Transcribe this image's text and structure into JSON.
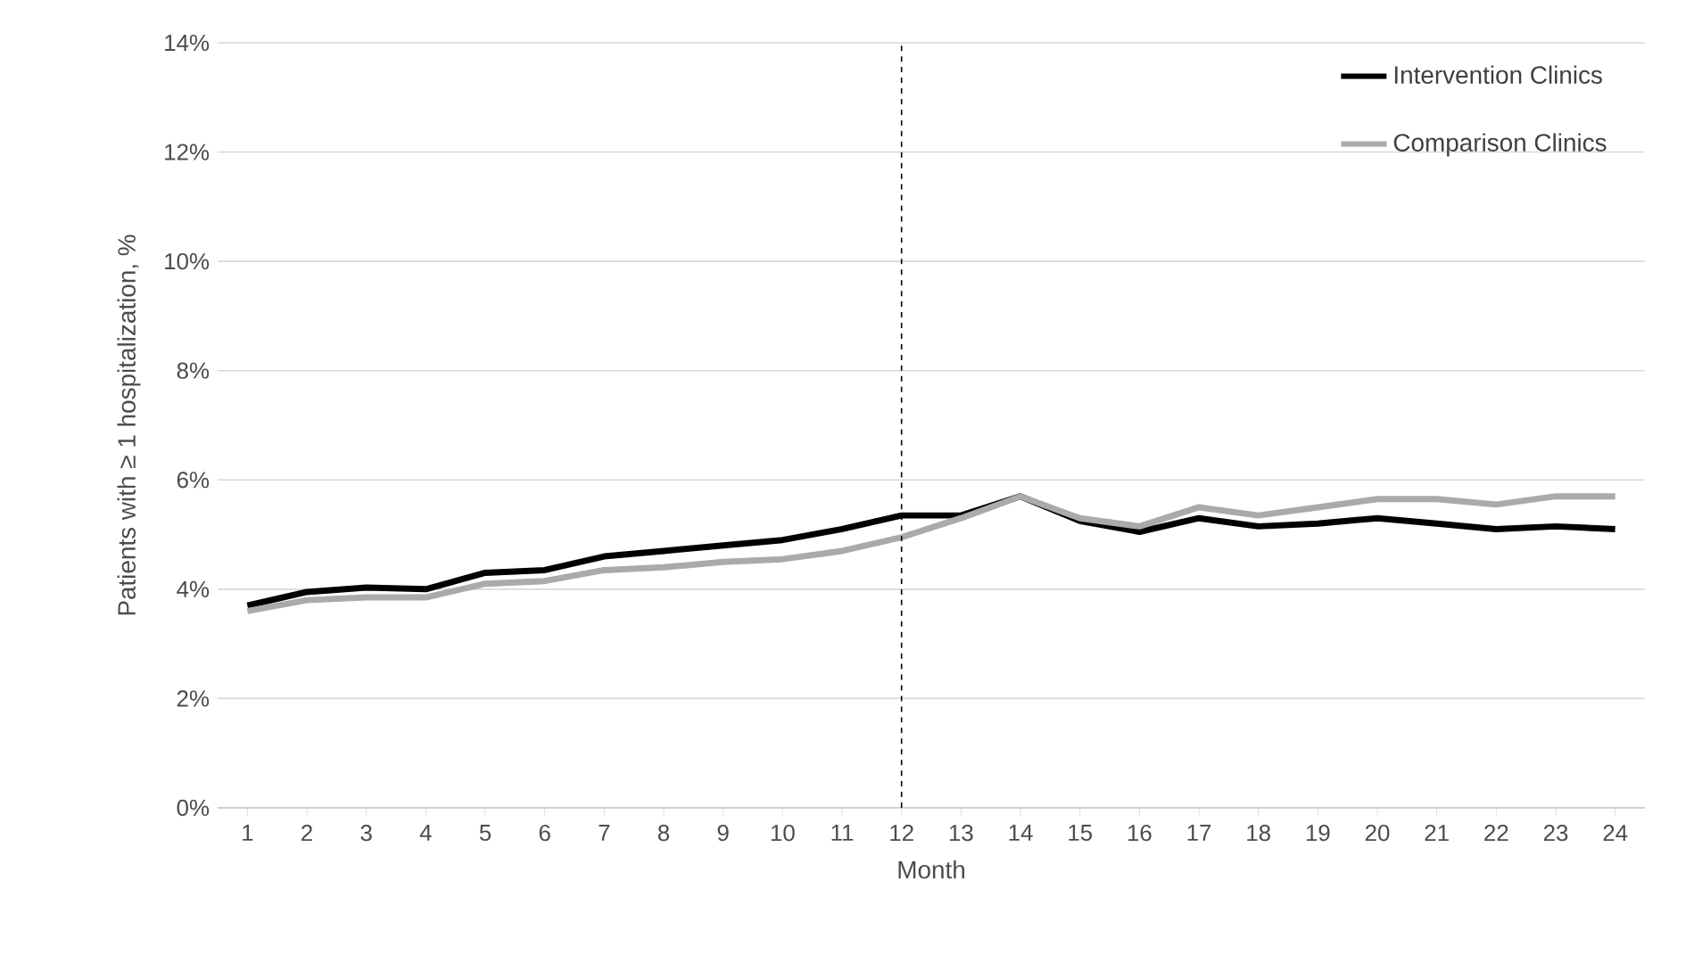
{
  "chart_data": {
    "type": "line",
    "xlabel": "Month",
    "ylabel": "Patients with ≥ 1 hospitalization, %",
    "x": [
      1,
      2,
      3,
      4,
      5,
      6,
      7,
      8,
      9,
      10,
      11,
      12,
      13,
      14,
      15,
      16,
      17,
      18,
      19,
      20,
      21,
      22,
      23,
      24
    ],
    "xlim": [
      0.5,
      24.5
    ],
    "xticks": [
      1,
      2,
      3,
      4,
      5,
      6,
      7,
      8,
      9,
      10,
      11,
      12,
      13,
      14,
      15,
      16,
      17,
      18,
      19,
      20,
      21,
      22,
      23,
      24
    ],
    "ylim": [
      0,
      14
    ],
    "yticks": [
      {
        "value": 0,
        "label": "0%"
      },
      {
        "value": 2,
        "label": "2%"
      },
      {
        "value": 4,
        "label": "4%"
      },
      {
        "value": 6,
        "label": "6%"
      },
      {
        "value": 8,
        "label": "8%"
      },
      {
        "value": 10,
        "label": "10%"
      },
      {
        "value": 12,
        "label": "12%"
      },
      {
        "value": 14,
        "label": "14%"
      }
    ],
    "series": [
      {
        "name": "Intervention Clinics",
        "color": "#000000",
        "values": [
          3.7,
          3.95,
          4.03,
          4.0,
          4.3,
          4.35,
          4.6,
          4.7,
          4.8,
          4.9,
          5.1,
          5.35,
          5.35,
          5.7,
          5.25,
          5.05,
          5.3,
          5.15,
          5.2,
          5.3,
          5.2,
          5.1,
          5.15,
          5.1
        ]
      },
      {
        "name": "Comparison Clinics",
        "color": "#aaaaaa",
        "values": [
          3.6,
          3.8,
          3.85,
          3.85,
          4.1,
          4.15,
          4.35,
          4.4,
          4.5,
          4.55,
          4.7,
          4.95,
          5.3,
          5.7,
          5.3,
          5.15,
          5.5,
          5.35,
          5.5,
          5.65,
          5.65,
          5.55,
          5.7,
          5.7
        ]
      }
    ],
    "ref_lines": [
      {
        "axis": "x",
        "value": 12,
        "color": "#000000",
        "line_style": "dashed"
      }
    ],
    "grid": "y",
    "legend": "top right",
    "marker": "none",
    "line_style": "solid"
  }
}
